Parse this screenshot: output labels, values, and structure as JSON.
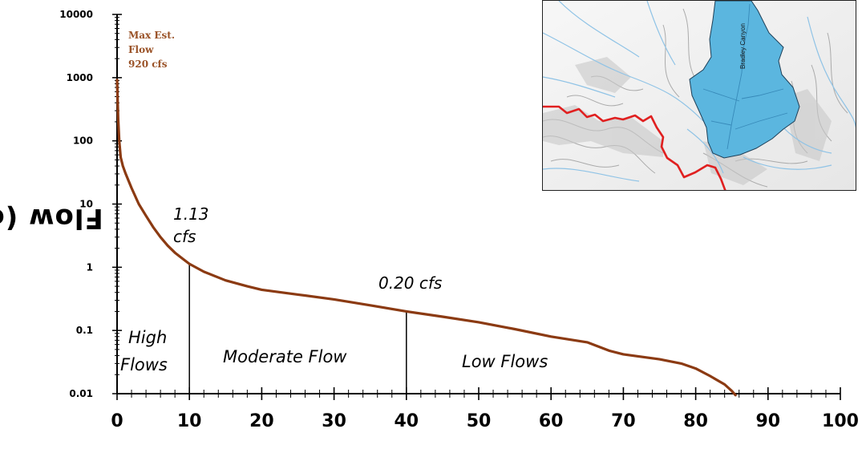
{
  "chart_data": {
    "type": "line",
    "title": "",
    "ylabel": "Flow (cfs)",
    "xlabel": "",
    "yscale": "log",
    "ylim": [
      0.01,
      10000
    ],
    "xlim": [
      0,
      100
    ],
    "y_ticks": [
      "10000",
      "1000",
      "100",
      "10",
      "1",
      "0.1",
      "0.01"
    ],
    "x_ticks": [
      "0",
      "10",
      "20",
      "30",
      "40",
      "50",
      "60",
      "70",
      "80",
      "90",
      "100"
    ],
    "line_color": "#8b3a12",
    "series": [
      {
        "x": [
          0,
          0.15,
          0.3,
          0.5,
          0.8,
          1.2,
          2,
          3,
          4,
          5,
          6,
          7,
          8,
          9,
          10,
          12,
          15,
          18,
          20,
          25,
          30,
          35,
          40,
          45,
          50,
          55,
          60,
          65,
          68,
          70,
          75,
          78,
          80,
          82,
          84,
          85,
          85.5
        ],
        "y": [
          920,
          220,
          100,
          55,
          40,
          30,
          18,
          10,
          6.5,
          4.3,
          3.0,
          2.2,
          1.7,
          1.38,
          1.13,
          0.85,
          0.62,
          0.5,
          0.44,
          0.37,
          0.31,
          0.25,
          0.2,
          0.165,
          0.135,
          0.105,
          0.08,
          0.065,
          0.048,
          0.042,
          0.035,
          0.03,
          0.025,
          0.019,
          0.014,
          0.011,
          0.0095
        ]
      }
    ],
    "annotations": {
      "max_label": [
        "Max Est.",
        "Flow",
        "920 cfs"
      ],
      "point_10_label": [
        "1.13",
        "cfs"
      ],
      "point_40_label": "0.20 cfs",
      "zone_high": [
        "High",
        "Flows"
      ],
      "zone_moderate": "Moderate Flow",
      "zone_low": "Low Flows"
    },
    "markers": [
      {
        "x": 10,
        "y": 1.13
      },
      {
        "x": 40,
        "y": 0.2
      }
    ]
  },
  "inset_map": {
    "label": "Bradley Canyon",
    "watershed_color": "#5bb6df",
    "boundary_color": "#e02020"
  }
}
